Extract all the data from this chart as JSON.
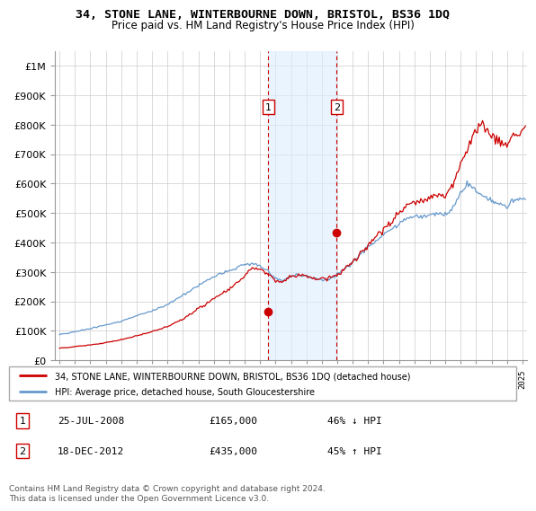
{
  "title": "34, STONE LANE, WINTERBOURNE DOWN, BRISTOL, BS36 1DQ",
  "subtitle": "Price paid vs. HM Land Registry's House Price Index (HPI)",
  "legend_line1": "34, STONE LANE, WINTERBOURNE DOWN, BRISTOL, BS36 1DQ (detached house)",
  "legend_line2": "HPI: Average price, detached house, South Gloucestershire",
  "transaction1_date": "25-JUL-2008",
  "transaction1_price": 165000,
  "transaction1_pct": "46% ↓ HPI",
  "transaction2_date": "18-DEC-2012",
  "transaction2_price": 435000,
  "transaction2_pct": "45% ↑ HPI",
  "footer": "Contains HM Land Registry data © Crown copyright and database right 2024.\nThis data is licensed under the Open Government Licence v3.0.",
  "hpi_color": "#cc0000",
  "price_color": "#6699cc",
  "marker_color": "#cc0000",
  "shade_color": "#ddeeff",
  "shade_alpha": 0.6,
  "grid_color": "#cccccc",
  "t1_year": 2008.54,
  "t2_year": 2012.96,
  "ylim": [
    0,
    1050000
  ],
  "xlim_start": 1994.7,
  "xlim_end": 2025.3
}
